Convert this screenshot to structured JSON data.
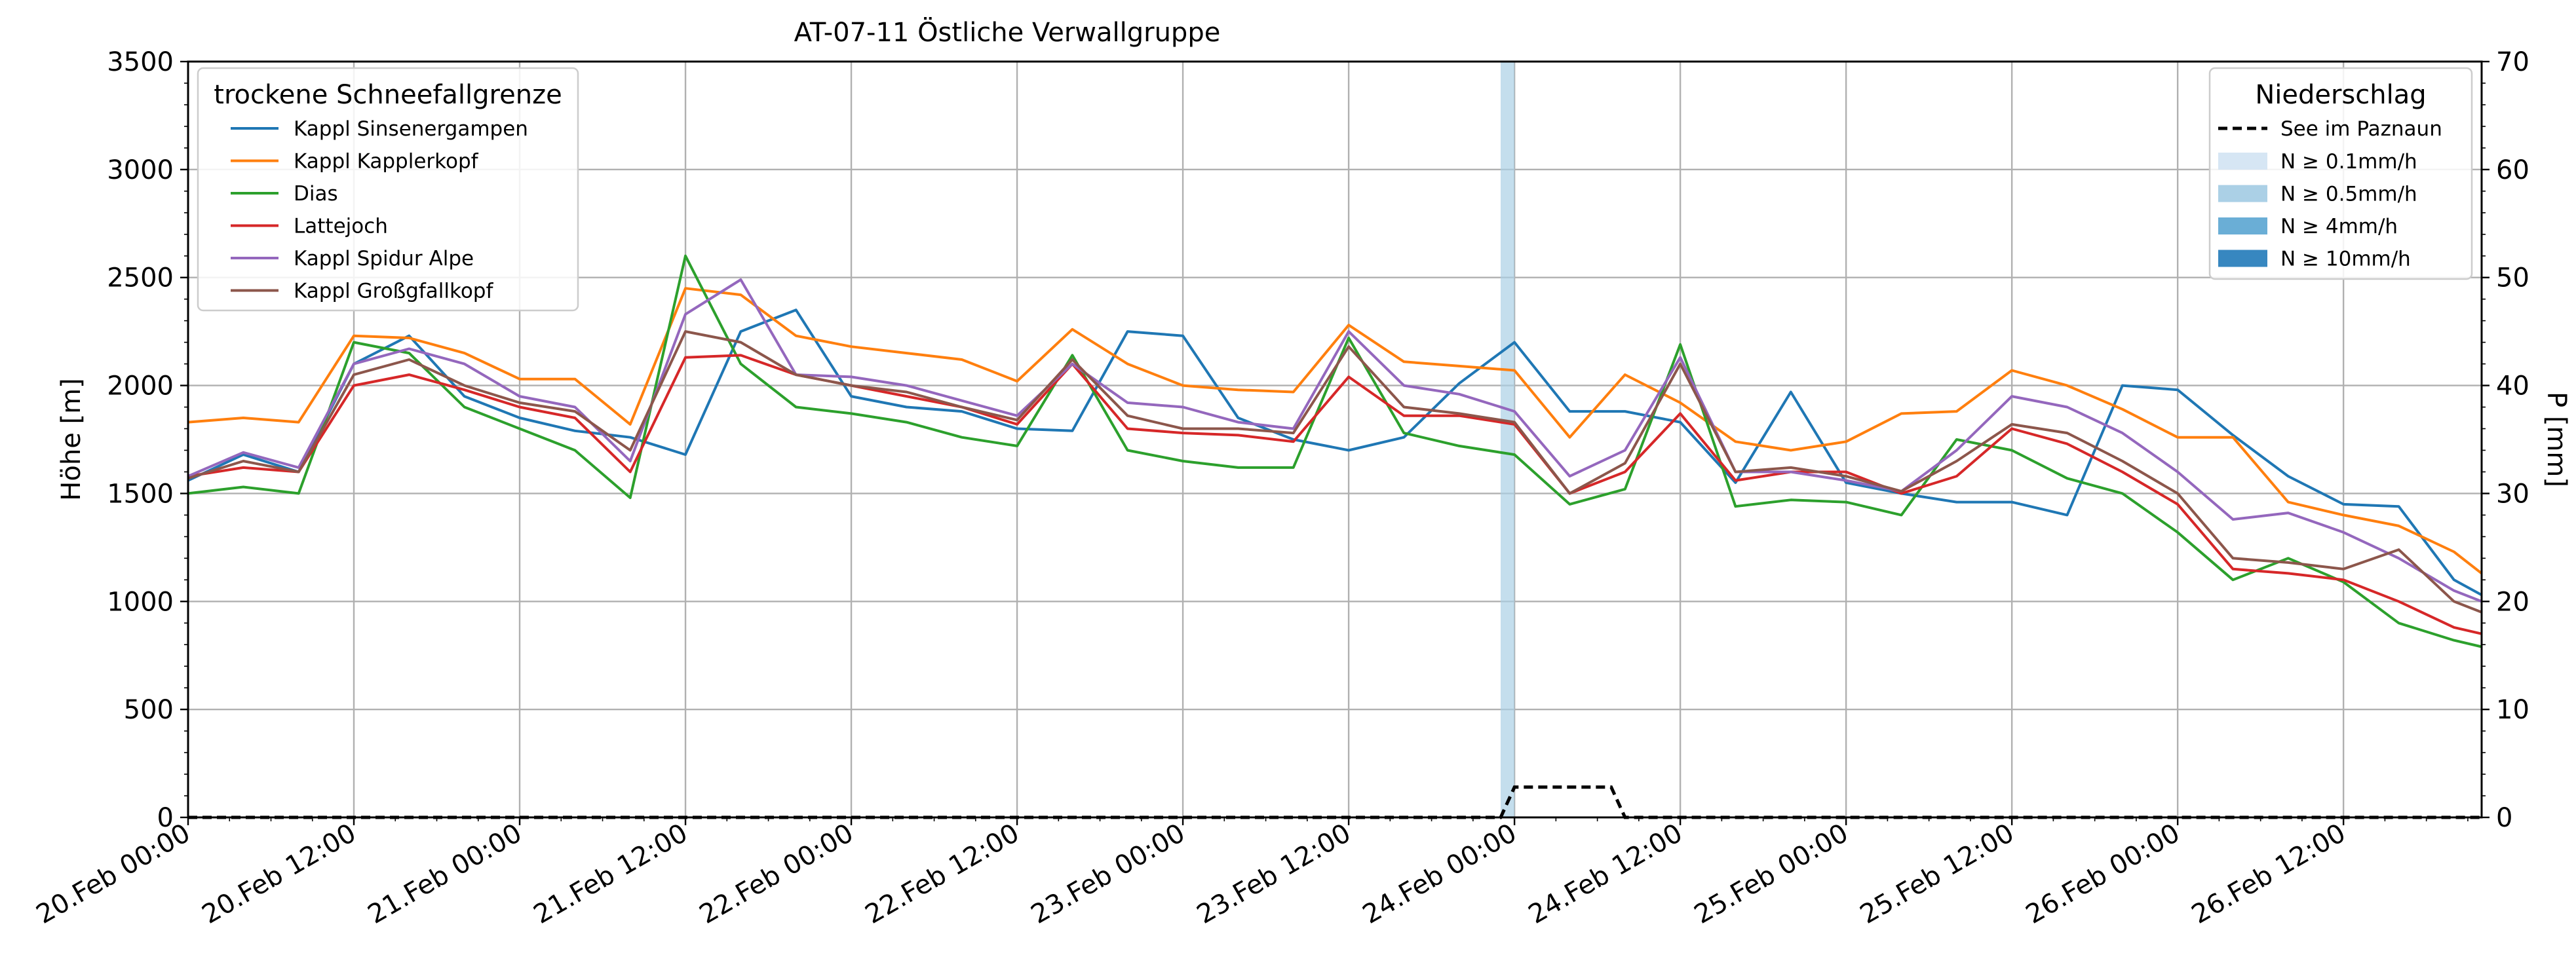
{
  "chart_data": {
    "type": "line",
    "title": "AT-07-11 Östliche Verwallgruppe",
    "xlabel": "",
    "ylabel": "Höhe [m]",
    "ylabel_right": "P [mm]",
    "ylim": [
      0,
      3500
    ],
    "ylim_right": [
      0,
      70
    ],
    "yticks": [
      "0",
      "500",
      "1000",
      "1500",
      "2000",
      "2500",
      "3000",
      "3500"
    ],
    "yticks_right": [
      "0",
      "10",
      "20",
      "30",
      "40",
      "50",
      "60",
      "70"
    ],
    "x_start": "20.Feb 00:00",
    "x_end": "26.Feb 22:00",
    "xtick_labels": [
      "20.Feb 00:00",
      "20.Feb 12:00",
      "21.Feb 00:00",
      "21.Feb 12:00",
      "22.Feb 00:00",
      "22.Feb 12:00",
      "23.Feb 00:00",
      "23.Feb 12:00",
      "24.Feb 00:00",
      "24.Feb 12:00",
      "25.Feb 00:00",
      "25.Feb 12:00",
      "26.Feb 00:00",
      "26.Feb 12:00"
    ],
    "grid": true,
    "legend_left": {
      "title": "trockene Schneefallgrenze",
      "position": "upper-left"
    },
    "legend_right": {
      "title": "Niederschlag",
      "position": "upper-right",
      "line_label": "See im Paznaun",
      "patches": [
        {
          "label": "N ≥ 0.1mm/h",
          "color": "#d6e6f4"
        },
        {
          "label": "N ≥ 0.5mm/h",
          "color": "#abd0e6"
        },
        {
          "label": "N ≥ 4mm/h",
          "color": "#6aaed6"
        },
        {
          "label": "N ≥ 10mm/h",
          "color": "#3787c0"
        }
      ]
    },
    "x_hours": [
      0,
      4,
      8,
      12,
      16,
      20,
      24,
      28,
      32,
      36,
      40,
      44,
      48,
      52,
      56,
      60,
      64,
      68,
      72,
      76,
      80,
      84,
      88,
      92,
      96,
      100,
      104,
      108,
      112,
      116,
      120,
      124,
      128,
      132,
      136,
      140,
      144,
      148,
      152,
      156,
      160,
      164,
      166
    ],
    "series": [
      {
        "name": "Kappl Sinsenergampen",
        "color": "#1f77b4",
        "values": [
          1560,
          1680,
          1600,
          2100,
          2230,
          1950,
          1850,
          1790,
          1760,
          1680,
          2250,
          2350,
          1950,
          1900,
          1880,
          1800,
          1790,
          2250,
          2230,
          1850,
          1750,
          1700,
          1760,
          2010,
          2200,
          1880,
          1880,
          1830,
          1550,
          1970,
          1550,
          1500,
          1460,
          1460,
          1400,
          2000,
          1980,
          1770,
          1580,
          1450,
          1440,
          1100,
          1030
        ]
      },
      {
        "name": "Kappl Kapplerkopf",
        "color": "#ff7f0e",
        "values": [
          1830,
          1850,
          1830,
          2230,
          2220,
          2150,
          2030,
          2030,
          1820,
          2450,
          2420,
          2230,
          2180,
          2150,
          2120,
          2020,
          2260,
          2100,
          2000,
          1980,
          1970,
          2280,
          2110,
          2090,
          2070,
          1760,
          2050,
          1920,
          1740,
          1700,
          1740,
          1870,
          1880,
          2070,
          2000,
          1890,
          1760,
          1760,
          1460,
          1400,
          1350,
          1230,
          1130
        ]
      },
      {
        "name": "Dias",
        "color": "#2ca02c",
        "values": [
          1500,
          1530,
          1500,
          2200,
          2150,
          1900,
          1800,
          1700,
          1480,
          2600,
          2100,
          1900,
          1870,
          1830,
          1760,
          1720,
          2140,
          1700,
          1650,
          1620,
          1620,
          2220,
          1780,
          1720,
          1680,
          1450,
          1520,
          2190,
          1440,
          1470,
          1460,
          1400,
          1750,
          1700,
          1570,
          1500,
          1320,
          1100,
          1200,
          1090,
          900,
          820,
          790
        ]
      },
      {
        "name": "Lattejoch",
        "color": "#d62728",
        "values": [
          1580,
          1620,
          1600,
          2000,
          2050,
          1980,
          1900,
          1850,
          1600,
          2130,
          2140,
          2050,
          2000,
          1950,
          1900,
          1820,
          2100,
          1800,
          1780,
          1770,
          1740,
          2040,
          1860,
          1860,
          1820,
          1500,
          1600,
          1870,
          1560,
          1600,
          1600,
          1500,
          1580,
          1800,
          1730,
          1600,
          1450,
          1150,
          1130,
          1100,
          1000,
          880,
          850
        ]
      },
      {
        "name": "Kappl Spidur Alpe",
        "color": "#9467bd",
        "values": [
          1580,
          1690,
          1620,
          2100,
          2170,
          2100,
          1950,
          1900,
          1650,
          2330,
          2490,
          2050,
          2040,
          2000,
          1930,
          1860,
          2100,
          1920,
          1900,
          1830,
          1800,
          2250,
          2000,
          1960,
          1880,
          1580,
          1700,
          2130,
          1600,
          1600,
          1560,
          1510,
          1700,
          1950,
          1900,
          1780,
          1600,
          1380,
          1410,
          1320,
          1200,
          1050,
          1000
        ]
      },
      {
        "name": "Kappl Großgfallkopf",
        "color": "#8c564b",
        "values": [
          1570,
          1650,
          1600,
          2050,
          2120,
          2000,
          1920,
          1880,
          1700,
          2250,
          2200,
          2050,
          2000,
          1970,
          1900,
          1840,
          2120,
          1860,
          1800,
          1800,
          1780,
          2180,
          1900,
          1870,
          1830,
          1500,
          1640,
          2100,
          1600,
          1620,
          1580,
          1510,
          1650,
          1820,
          1780,
          1650,
          1500,
          1200,
          1180,
          1150,
          1240,
          1000,
          950
        ]
      }
    ],
    "precip_line": {
      "name": "See im Paznaun",
      "x_hours": [
        0,
        95,
        96,
        103,
        104,
        166
      ],
      "values": [
        0,
        0,
        2.8,
        2.8,
        0,
        0
      ]
    },
    "precip_bands": [
      {
        "x_start": 95,
        "x_end": 96,
        "level": "N ≥ 0.5mm/h"
      }
    ]
  }
}
